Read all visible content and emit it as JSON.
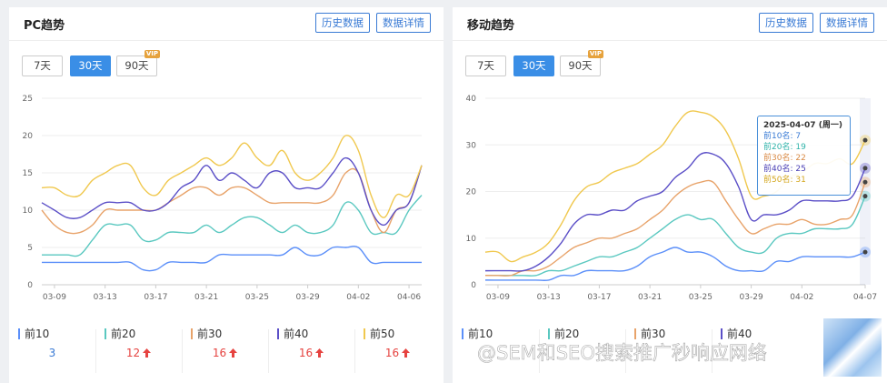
{
  "pc": {
    "title": "PC趋势",
    "btn_history": "历史数据",
    "btn_details": "数据详情",
    "ranges": [
      "7天",
      "30天",
      "90天"
    ],
    "active_range": "30天",
    "vip_badge": "VIP",
    "legend": [
      {
        "label": "前10",
        "value": "3",
        "trend": "",
        "color": "#5b8ff9"
      },
      {
        "label": "前20",
        "value": "12",
        "trend": "up",
        "color": "#5ac8c0"
      },
      {
        "label": "前30",
        "value": "16",
        "trend": "up",
        "color": "#e8a36a"
      },
      {
        "label": "前40",
        "value": "16",
        "trend": "up",
        "color": "#5b4fc7"
      },
      {
        "label": "前50",
        "value": "16",
        "trend": "up",
        "color": "#f0c84e"
      }
    ]
  },
  "mobile": {
    "title": "移动趋势",
    "btn_history": "历史数据",
    "btn_details": "数据详情",
    "ranges": [
      "7天",
      "30天",
      "90天"
    ],
    "active_range": "30天",
    "vip_badge": "VIP",
    "legend": [
      {
        "label": "前10",
        "color": "#5b8ff9"
      },
      {
        "label": "前20",
        "color": "#5ac8c0"
      },
      {
        "label": "前30",
        "color": "#e8a36a"
      },
      {
        "label": "前40",
        "color": "#5b4fc7"
      }
    ],
    "tooltip": {
      "date": "2025-04-07 (周一)",
      "rows": [
        {
          "text": "前10名: 7",
          "color": "#3a7bd5"
        },
        {
          "text": "前20名: 19",
          "color": "#2fb3a9"
        },
        {
          "text": "前30名: 22",
          "color": "#d98a45"
        },
        {
          "text": "前40名: 25",
          "color": "#4a3fb5"
        },
        {
          "text": "前50名: 31",
          "color": "#d4a61c"
        }
      ]
    }
  },
  "watermark": "@SEM和SEO搜索推广秒响应网络",
  "chart_data": [
    {
      "type": "line",
      "title": "PC趋势",
      "x": [
        "03-08",
        "03-09",
        "03-10",
        "03-11",
        "03-12",
        "03-13",
        "03-14",
        "03-15",
        "03-16",
        "03-17",
        "03-18",
        "03-19",
        "03-20",
        "03-21",
        "03-22",
        "03-23",
        "03-24",
        "03-25",
        "03-26",
        "03-27",
        "03-28",
        "03-29",
        "03-30",
        "03-31",
        "04-01",
        "04-02",
        "04-03",
        "04-04",
        "04-05",
        "04-06",
        "04-07"
      ],
      "xticks": [
        "03-09",
        "03-13",
        "03-17",
        "03-21",
        "03-25",
        "03-29",
        "04-02",
        "04-06"
      ],
      "ylim": [
        0,
        25
      ],
      "yticks": [
        0,
        5,
        10,
        15,
        20,
        25
      ],
      "grid": true,
      "series": [
        {
          "name": "前10",
          "color": "#5b8ff9",
          "values": [
            3,
            3,
            3,
            3,
            3,
            3,
            3,
            3,
            2,
            2,
            3,
            3,
            3,
            3,
            4,
            4,
            4,
            4,
            4,
            4,
            5,
            4,
            4,
            5,
            5,
            5,
            3,
            3,
            3,
            3,
            3
          ]
        },
        {
          "name": "前20",
          "color": "#5ac8c0",
          "values": [
            4,
            4,
            4,
            4,
            6,
            8,
            8,
            8,
            6,
            6,
            7,
            7,
            7,
            8,
            7,
            8,
            9,
            9,
            8,
            7,
            8,
            7,
            7,
            8,
            11,
            10,
            7,
            7,
            7,
            10,
            12
          ]
        },
        {
          "name": "前30",
          "color": "#e8a36a",
          "values": [
            10,
            8,
            7,
            7,
            8,
            10,
            10,
            10,
            10,
            10,
            11,
            12,
            13,
            13,
            12,
            13,
            13,
            12,
            11,
            11,
            11,
            11,
            11,
            12,
            15,
            15,
            10,
            7,
            10,
            11,
            16
          ]
        },
        {
          "name": "前40",
          "color": "#5b4fc7",
          "values": [
            11,
            10,
            9,
            9,
            10,
            11,
            11,
            11,
            10,
            10,
            11,
            13,
            14,
            16,
            14,
            15,
            14,
            13,
            15,
            15,
            13,
            13,
            13,
            15,
            17,
            15,
            10,
            8,
            10,
            11,
            16
          ]
        },
        {
          "name": "前50",
          "color": "#f0c84e",
          "values": [
            13,
            13,
            12,
            12,
            14,
            15,
            16,
            16,
            13,
            12,
            14,
            15,
            16,
            17,
            16,
            17,
            19,
            17,
            16,
            18,
            15,
            14,
            15,
            17,
            20,
            18,
            12,
            9,
            12,
            12,
            16
          ]
        }
      ]
    },
    {
      "type": "line",
      "title": "移动趋势",
      "x": [
        "03-08",
        "03-09",
        "03-10",
        "03-11",
        "03-12",
        "03-13",
        "03-14",
        "03-15",
        "03-16",
        "03-17",
        "03-18",
        "03-19",
        "03-20",
        "03-21",
        "03-22",
        "03-23",
        "03-24",
        "03-25",
        "03-26",
        "03-27",
        "03-28",
        "03-29",
        "03-30",
        "03-31",
        "04-01",
        "04-02",
        "04-03",
        "04-04",
        "04-05",
        "04-06",
        "04-07"
      ],
      "xticks": [
        "03-09",
        "03-13",
        "03-17",
        "03-21",
        "03-25",
        "03-29",
        "04-02",
        "04-07"
      ],
      "ylim": [
        0,
        40
      ],
      "yticks": [
        0,
        10,
        20,
        30,
        40
      ],
      "grid": true,
      "series": [
        {
          "name": "前10",
          "color": "#5b8ff9",
          "values": [
            1,
            1,
            1,
            1,
            1,
            1,
            2,
            2,
            3,
            3,
            3,
            3,
            4,
            6,
            7,
            8,
            7,
            7,
            6,
            4,
            3,
            3,
            3,
            5,
            5,
            6,
            6,
            6,
            6,
            6,
            7
          ]
        },
        {
          "name": "前20",
          "color": "#5ac8c0",
          "values": [
            2,
            2,
            2,
            2,
            2,
            3,
            3,
            4,
            5,
            6,
            6,
            7,
            8,
            10,
            12,
            14,
            15,
            14,
            14,
            11,
            8,
            7,
            7,
            10,
            11,
            11,
            12,
            12,
            12,
            13,
            19
          ]
        },
        {
          "name": "前30",
          "color": "#e8a36a",
          "values": [
            2,
            2,
            2,
            3,
            3,
            4,
            6,
            8,
            9,
            10,
            10,
            11,
            12,
            14,
            16,
            19,
            21,
            22,
            22,
            18,
            14,
            11,
            12,
            13,
            13,
            14,
            13,
            13,
            14,
            15,
            22
          ]
        },
        {
          "name": "前40",
          "color": "#5b4fc7",
          "values": [
            3,
            3,
            3,
            3,
            4,
            6,
            9,
            13,
            15,
            15,
            16,
            16,
            18,
            19,
            20,
            23,
            25,
            28,
            28,
            26,
            21,
            14,
            15,
            15,
            16,
            18,
            18,
            18,
            18,
            19,
            25
          ]
        },
        {
          "name": "前50",
          "color": "#f0c84e",
          "values": [
            7,
            7,
            5,
            6,
            7,
            9,
            13,
            18,
            21,
            22,
            24,
            25,
            26,
            28,
            30,
            34,
            37,
            37,
            36,
            33,
            27,
            19,
            19,
            20,
            23,
            24,
            26,
            26,
            27,
            26,
            31
          ]
        }
      ]
    }
  ]
}
